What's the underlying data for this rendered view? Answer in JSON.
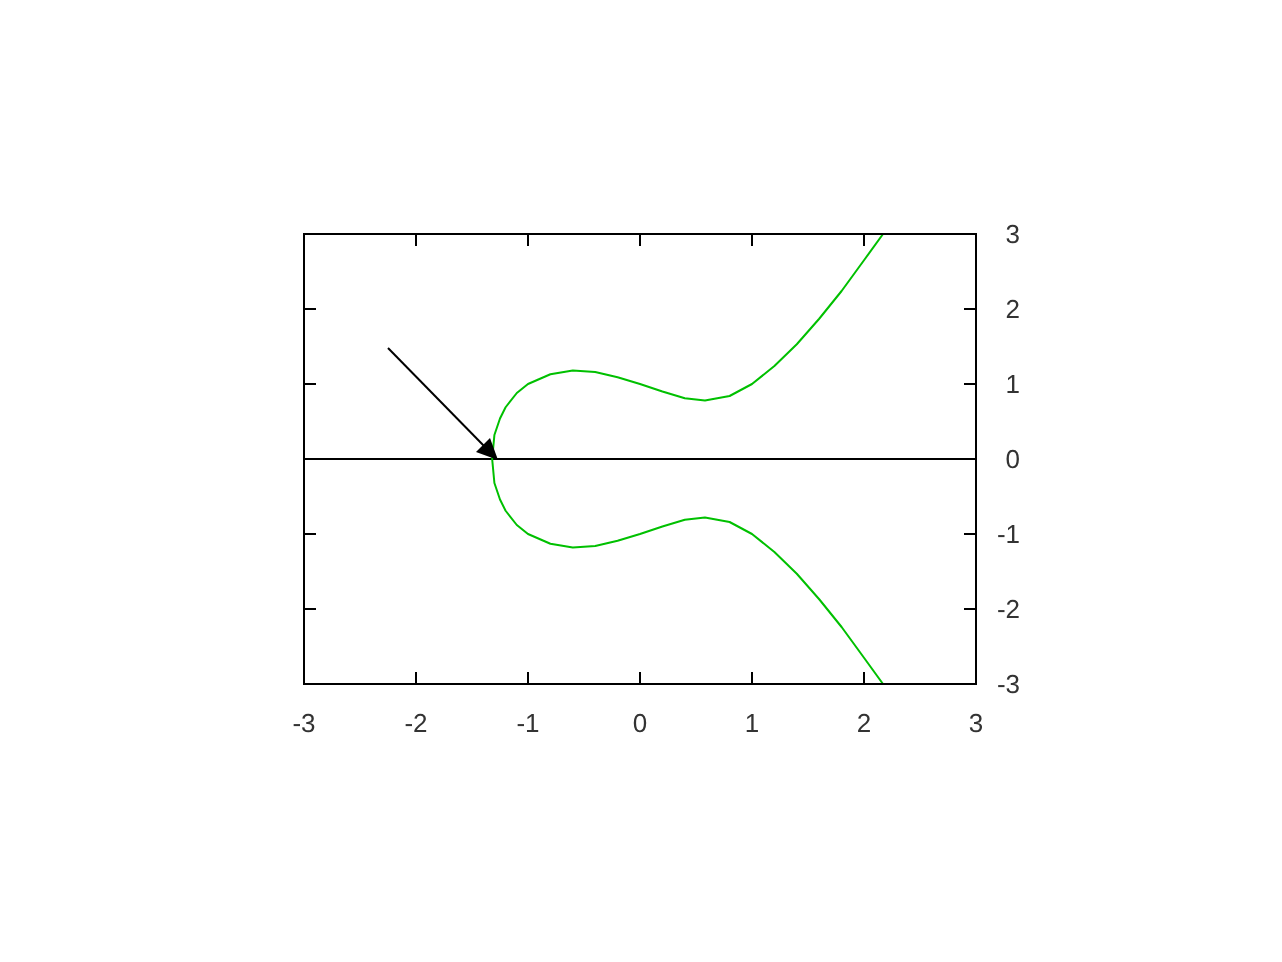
{
  "chart_data": {
    "type": "line",
    "xlim": [
      -3,
      3
    ],
    "xticks": [
      -3,
      -2,
      -1,
      0,
      1,
      2,
      3
    ],
    "ylim": [
      -3,
      3
    ],
    "yticks": [
      -3,
      -2,
      -1,
      0,
      1,
      2,
      3
    ],
    "grid": false,
    "marker": "none",
    "line_style": "solid",
    "series": [
      {
        "color": "#00c000",
        "x": [
          2.17,
          2.0,
          1.8,
          1.6,
          1.4,
          1.2,
          1.0,
          0.8,
          0.58,
          0.4,
          0.2,
          0,
          -0.2,
          -0.4,
          -0.6,
          -0.8,
          -1.0,
          -1.1,
          -1.2,
          -1.25,
          -1.3,
          -1.32,
          -1.3,
          -1.25,
          -1.2,
          -1.1,
          -1.0,
          -0.8,
          -0.6,
          -0.4,
          -0.2,
          0,
          0.2,
          0.4,
          0.58,
          0.8,
          1.0,
          1.2,
          1.4,
          1.6,
          1.8,
          2.0,
          2.17
        ],
        "values": [
          3.0,
          2.65,
          2.24,
          1.87,
          1.53,
          1.24,
          1.0,
          0.84,
          0.78,
          0.81,
          0.9,
          1.0,
          1.09,
          1.16,
          1.18,
          1.13,
          1.0,
          0.88,
          0.69,
          0.54,
          0.32,
          0,
          -0.32,
          -0.54,
          -0.69,
          -0.88,
          -1.0,
          -1.13,
          -1.18,
          -1.16,
          -1.09,
          -1.0,
          -0.9,
          -0.81,
          -0.78,
          -0.84,
          -1.0,
          -1.24,
          -1.53,
          -1.87,
          -2.24,
          -2.65,
          -3.0
        ]
      }
    ],
    "ref_lines": [
      {
        "axis": "y",
        "value": 0,
        "color": "#000000"
      }
    ]
  }
}
